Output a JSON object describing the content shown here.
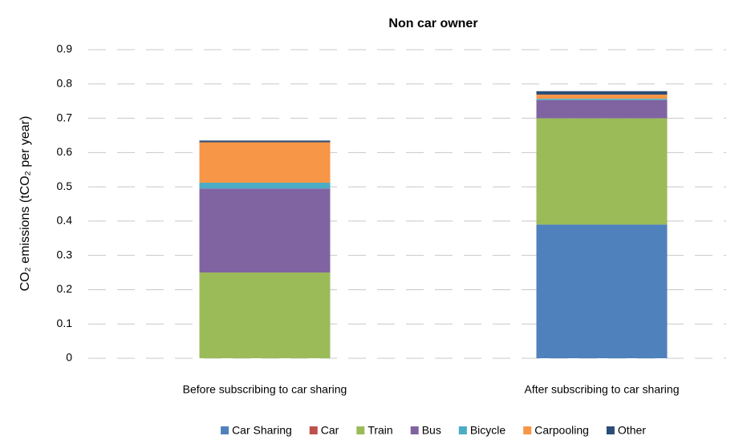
{
  "chart_data": {
    "type": "stacked_bar",
    "title": "Non car owner",
    "y_label": "CO₂ emissions (tCO₂ per year)",
    "categories": [
      "Before subscribing to car sharing",
      "After subscribing to car sharing"
    ],
    "series": [
      {
        "name": "Car Sharing",
        "color": "#4f81bd",
        "values": [
          0,
          0.39
        ]
      },
      {
        "name": "Car",
        "color": "#c0504d",
        "values": [
          0,
          0
        ]
      },
      {
        "name": "Train",
        "color": "#9bbb59",
        "values": [
          0.25,
          0.31
        ]
      },
      {
        "name": "Bus",
        "color": "#8064a2",
        "values": [
          0.245,
          0.053
        ]
      },
      {
        "name": "Bicycle",
        "color": "#4bacc6",
        "values": [
          0.017,
          0.004
        ]
      },
      {
        "name": "Carpooling",
        "color": "#f79646",
        "values": [
          0.118,
          0.012
        ]
      },
      {
        "name": "Other",
        "color": "#2c4d75",
        "values": [
          0.005,
          0.01
        ]
      }
    ],
    "ylim": [
      0,
      0.9
    ],
    "yticks": [
      0,
      0.1,
      0.2,
      0.3,
      0.4,
      0.5,
      0.6,
      0.7,
      0.8,
      0.9
    ],
    "grid": true,
    "legend": "bottom"
  }
}
